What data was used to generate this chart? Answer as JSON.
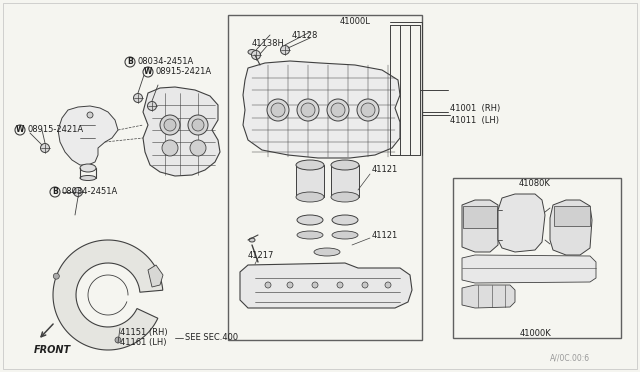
{
  "bg_color": "#f5f5f0",
  "line_color": "#404040",
  "text_color": "#202020",
  "border_color": "#606060",
  "labels": {
    "B08034_top": "08034-2451A",
    "W08915_top": "08915-2421A",
    "W08915_left": "08915-2421A",
    "B08034_bot": "08034-2451A",
    "part_41000L": "41000L",
    "part_41128": "41128",
    "part_41138H": "41138H",
    "part_41121_top": "41121",
    "part_41121_bot": "41121",
    "part_41217": "41217",
    "part_41001": "41001  (RH)",
    "part_41011": "41011  (LH)",
    "part_41080K": "41080K",
    "part_41000K": "41000K",
    "part_41151": "41151 (RH)",
    "part_41161": "41161 (LH)",
    "see_sec": "SEE SEC.400",
    "front_label": "FRONT",
    "watermark": "A//0C.00:6"
  },
  "fig_width": 6.4,
  "fig_height": 3.72,
  "dpi": 100
}
